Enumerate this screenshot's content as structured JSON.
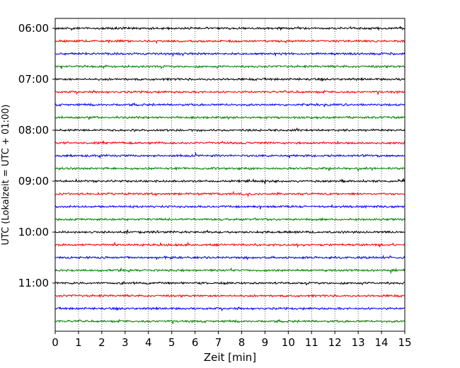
{
  "chart_data": {
    "type": "line",
    "title": "",
    "xlabel": "Zeit  [min]",
    "ylabel": "UTC (Lokalzeit = UTC + 01:00)",
    "xlim": [
      0,
      15
    ],
    "x_ticks": [
      "0",
      "1",
      "2",
      "3",
      "4",
      "5",
      "6",
      "7",
      "8",
      "9",
      "10",
      "11",
      "12",
      "13",
      "14",
      "15"
    ],
    "y_ticks": [
      "06:00",
      "07:00",
      "08:00",
      "09:00",
      "10:00",
      "11:00"
    ],
    "grid": "vertical dotted lines at each minute",
    "trace_interval_minutes": 15,
    "color_cycle": [
      "#000000",
      "#ff0000",
      "#0000ff",
      "#008000"
    ],
    "series": [
      {
        "start": "06:00",
        "color": "#000000"
      },
      {
        "start": "06:15",
        "color": "#ff0000"
      },
      {
        "start": "06:30",
        "color": "#0000ff"
      },
      {
        "start": "06:45",
        "color": "#008000"
      },
      {
        "start": "07:00",
        "color": "#000000"
      },
      {
        "start": "07:15",
        "color": "#ff0000"
      },
      {
        "start": "07:30",
        "color": "#0000ff"
      },
      {
        "start": "07:45",
        "color": "#008000"
      },
      {
        "start": "08:00",
        "color": "#000000"
      },
      {
        "start": "08:15",
        "color": "#ff0000"
      },
      {
        "start": "08:30",
        "color": "#0000ff"
      },
      {
        "start": "08:45",
        "color": "#008000"
      },
      {
        "start": "09:00",
        "color": "#000000"
      },
      {
        "start": "09:15",
        "color": "#ff0000"
      },
      {
        "start": "09:30",
        "color": "#0000ff"
      },
      {
        "start": "09:45",
        "color": "#008000"
      },
      {
        "start": "10:00",
        "color": "#000000"
      },
      {
        "start": "10:15",
        "color": "#ff0000"
      },
      {
        "start": "10:30",
        "color": "#0000ff"
      },
      {
        "start": "10:45",
        "color": "#008000"
      },
      {
        "start": "11:00",
        "color": "#000000"
      },
      {
        "start": "11:15",
        "color": "#ff0000"
      },
      {
        "start": "11:30",
        "color": "#0000ff"
      },
      {
        "start": "11:45",
        "color": "#008000"
      }
    ]
  }
}
